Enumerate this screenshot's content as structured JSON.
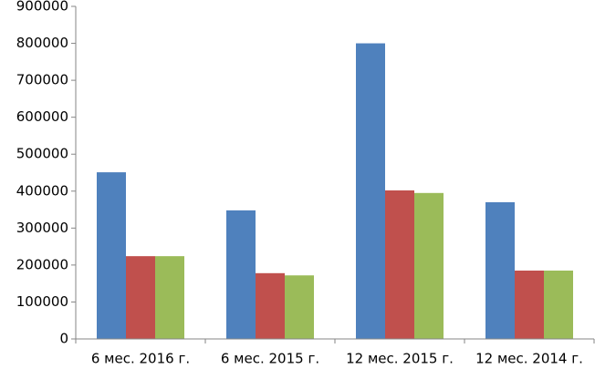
{
  "chart_data": {
    "type": "bar",
    "categories": [
      "6 мес. 2016 г.",
      "6 мес. 2015 г.",
      "12 мес. 2015 г.",
      "12 мес. 2014 г."
    ],
    "series": [
      {
        "color": "#4f81bd",
        "values": [
          451000,
          348000,
          800000,
          370000
        ]
      },
      {
        "color": "#c0504d",
        "values": [
          224000,
          178000,
          402000,
          185000
        ]
      },
      {
        "color": "#9bbb59",
        "values": [
          224000,
          172000,
          395000,
          185000
        ]
      }
    ],
    "ylim": [
      0,
      900000
    ],
    "yticks": [
      0,
      100000,
      200000,
      300000,
      400000,
      500000,
      600000,
      700000,
      800000,
      900000
    ],
    "grid": false
  }
}
